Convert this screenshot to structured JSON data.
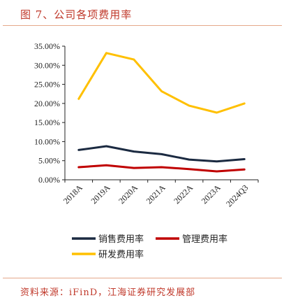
{
  "figure": {
    "title": "图 7、公司各项费用率",
    "source": "资料来源：iFinD，江海证券研究发展部"
  },
  "chart_data": {
    "type": "line",
    "title": "",
    "xlabel": "",
    "ylabel": "",
    "categories": [
      "2018A",
      "2019A",
      "2020A",
      "2021A",
      "2022A",
      "2023A",
      "2024Q3"
    ],
    "y_ticks": [
      "0.00%",
      "5.00%",
      "10.00%",
      "15.00%",
      "20.00%",
      "25.00%",
      "30.00%",
      "35.00%"
    ],
    "ylim": [
      0,
      35
    ],
    "grid": false,
    "legend_position": "bottom",
    "series": [
      {
        "name": "销售费用率",
        "color": "#1b2a41",
        "values": [
          7.8,
          8.8,
          7.4,
          6.7,
          5.3,
          4.8,
          5.4
        ]
      },
      {
        "name": "管理费用率",
        "color": "#c00000",
        "values": [
          3.3,
          3.8,
          3.1,
          3.3,
          2.8,
          2.2,
          2.7
        ]
      },
      {
        "name": "研发费用率",
        "color": "#ffc000",
        "values": [
          21.2,
          33.2,
          31.5,
          23.2,
          19.4,
          17.6,
          20.0
        ]
      }
    ]
  }
}
